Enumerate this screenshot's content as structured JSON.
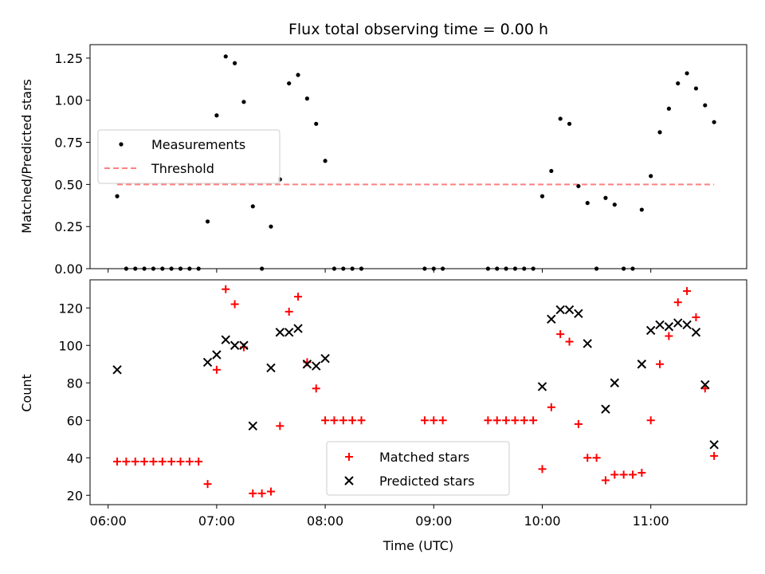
{
  "chart_data": [
    {
      "type": "scatter",
      "title": "Flux total observing time = 0.00 h",
      "xlabel": "",
      "ylabel": "Matched/Predicted stars",
      "xlim": [
        "05:50",
        "11:53"
      ],
      "ylim": [
        0,
        1.33
      ],
      "yticks": [
        "0.00",
        "0.25",
        "0.50",
        "0.75",
        "1.00",
        "1.25"
      ],
      "grid": false,
      "legend_position": "center-left",
      "series": [
        {
          "name": "Measurements",
          "marker": "dot",
          "color": "#000000",
          "x": [
            "06:05",
            "06:10",
            "06:15",
            "06:20",
            "06:25",
            "06:30",
            "06:35",
            "06:40",
            "06:45",
            "06:50",
            "06:55",
            "07:00",
            "07:05",
            "07:10",
            "07:15",
            "07:20",
            "07:25",
            "07:30",
            "07:35",
            "07:40",
            "07:45",
            "07:50",
            "07:55",
            "08:00",
            "08:05",
            "08:10",
            "08:15",
            "08:20",
            "08:55",
            "09:00",
            "09:05",
            "09:30",
            "09:35",
            "09:40",
            "09:45",
            "09:50",
            "09:55",
            "10:00",
            "10:05",
            "10:10",
            "10:15",
            "10:20",
            "10:25",
            "10:30",
            "10:35",
            "10:40",
            "10:45",
            "10:50",
            "10:55",
            "11:00",
            "11:05",
            "11:10",
            "11:15",
            "11:20",
            "11:25",
            "11:30",
            "11:35"
          ],
          "y": [
            0.43,
            0.0,
            0.0,
            0.0,
            0.0,
            0.0,
            0.0,
            0.0,
            0.0,
            0.0,
            0.28,
            0.91,
            1.26,
            1.22,
            0.99,
            0.37,
            0.0,
            0.25,
            0.53,
            1.1,
            1.15,
            1.01,
            0.86,
            0.64,
            0.0,
            0.0,
            0.0,
            0.0,
            0.0,
            0.0,
            0.0,
            0.0,
            0.0,
            0.0,
            0.0,
            0.0,
            0.0,
            0.43,
            0.58,
            0.89,
            0.86,
            0.49,
            0.39,
            0.0,
            0.42,
            0.38,
            0.0,
            0.0,
            0.35,
            0.55,
            0.81,
            0.95,
            1.1,
            1.16,
            1.07,
            0.97,
            0.87
          ]
        },
        {
          "name": "Threshold",
          "style": "dashed",
          "color": "#ff8080",
          "x": [
            "06:05",
            "11:35"
          ],
          "y": [
            0.5,
            0.5
          ]
        }
      ]
    },
    {
      "type": "scatter",
      "title": "",
      "xlabel": "Time (UTC)",
      "ylabel": "Count",
      "xlim": [
        "05:50",
        "11:53"
      ],
      "ylim": [
        15,
        135
      ],
      "xticks": [
        "06:00",
        "07:00",
        "08:00",
        "09:00",
        "10:00",
        "11:00"
      ],
      "yticks": [
        "20",
        "40",
        "60",
        "80",
        "100",
        "120"
      ],
      "grid": false,
      "legend_position": "bottom-center",
      "series": [
        {
          "name": "Matched stars",
          "marker": "plus",
          "color": "#ff0000",
          "x": [
            "06:05",
            "06:10",
            "06:15",
            "06:20",
            "06:25",
            "06:30",
            "06:35",
            "06:40",
            "06:45",
            "06:50",
            "06:55",
            "07:00",
            "07:05",
            "07:10",
            "07:15",
            "07:20",
            "07:25",
            "07:30",
            "07:35",
            "07:40",
            "07:45",
            "07:50",
            "07:55",
            "08:00",
            "08:05",
            "08:10",
            "08:15",
            "08:20",
            "08:55",
            "09:00",
            "09:05",
            "09:30",
            "09:35",
            "09:40",
            "09:45",
            "09:50",
            "09:55",
            "10:00",
            "10:05",
            "10:10",
            "10:15",
            "10:20",
            "10:25",
            "10:30",
            "10:35",
            "10:40",
            "10:45",
            "10:50",
            "10:55",
            "11:00",
            "11:05",
            "11:10",
            "11:15",
            "11:20",
            "11:25",
            "11:30",
            "11:35"
          ],
          "y": [
            38,
            38,
            38,
            38,
            38,
            38,
            38,
            38,
            38,
            38,
            26,
            87,
            130,
            122,
            99,
            21,
            21,
            22,
            57,
            118,
            126,
            91,
            77,
            60,
            60,
            60,
            60,
            60,
            60,
            60,
            60,
            60,
            60,
            60,
            60,
            60,
            60,
            34,
            67,
            106,
            102,
            58,
            40,
            40,
            28,
            31,
            31,
            31,
            32,
            60,
            90,
            105,
            123,
            129,
            115,
            77,
            41
          ]
        },
        {
          "name": "Predicted stars",
          "marker": "x",
          "color": "#000000",
          "x": [
            "06:05",
            "06:55",
            "07:00",
            "07:05",
            "07:10",
            "07:15",
            "07:20",
            "07:30",
            "07:35",
            "07:40",
            "07:45",
            "07:50",
            "07:55",
            "08:00",
            "10:00",
            "10:05",
            "10:10",
            "10:15",
            "10:20",
            "10:25",
            "10:35",
            "10:40",
            "10:55",
            "11:00",
            "11:05",
            "11:10",
            "11:15",
            "11:20",
            "11:25",
            "11:30",
            "11:35"
          ],
          "y": [
            87,
            91,
            95,
            103,
            100,
            100,
            57,
            88,
            107,
            107,
            109,
            90,
            89,
            93,
            78,
            114,
            119,
            119,
            117,
            101,
            66,
            80,
            90,
            108,
            111,
            110,
            112,
            111,
            107,
            79,
            47
          ]
        }
      ]
    }
  ]
}
